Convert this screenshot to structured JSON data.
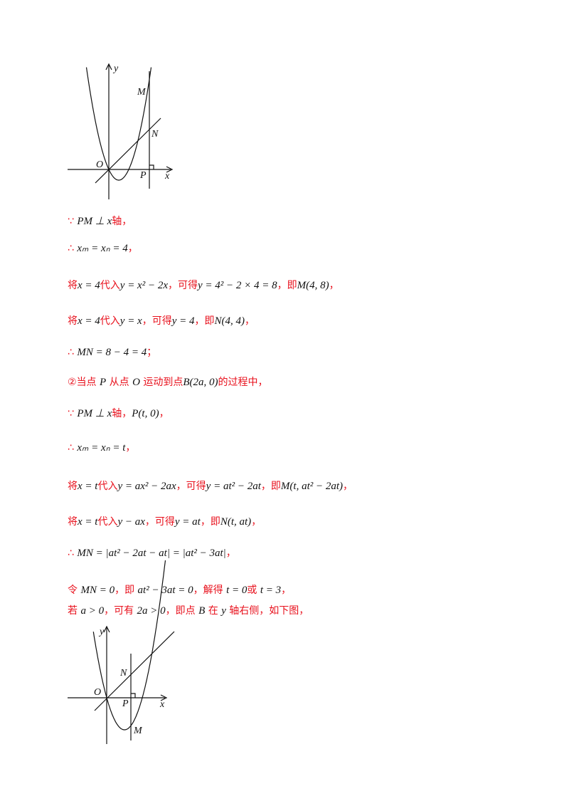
{
  "figure1": {
    "labels": [
      "y",
      "M",
      "N",
      "O",
      "P",
      "x"
    ]
  },
  "lines": [
    [
      "∵ ",
      "PM ⊥ x",
      "轴，"
    ],
    [
      "∴ ",
      "xₘ = xₙ = 4",
      "，"
    ],
    [
      "将",
      "x = 4",
      "代入",
      "y = x² − 2x",
      "，可得",
      "y = 4² − 2 × 4 = 8",
      "，即",
      "M(4, 8)",
      "，"
    ],
    [
      "将",
      "x = 4",
      "代入",
      "y = x",
      "，可得",
      "y = 4",
      "，即",
      "N(4, 4)",
      "，"
    ],
    [
      "∴ ",
      "MN = 8 − 4 = 4",
      "；"
    ],
    [
      "②当点 ",
      "P",
      " 从点 ",
      "O",
      " 运动到点",
      "B(2a, 0)",
      "的过程中，"
    ],
    [
      "∵ ",
      "PM ⊥ x",
      "轴，",
      "P(t, 0)",
      "，"
    ],
    [
      "∴ ",
      "xₘ = xₙ = t",
      "，"
    ],
    [
      "将",
      "x = t",
      "代入",
      "y = ax² − 2ax",
      "，可得",
      "y = at² − 2at",
      "，即",
      "M(t, at² − 2at)",
      "，"
    ],
    [
      "将",
      "x = t",
      "代入",
      "y − ax",
      "，可得",
      "y = at",
      "，即",
      "N(t, at)",
      "，"
    ],
    [
      "∴ ",
      "MN = |at² − 2at − at| = |at² − 3at|",
      "，"
    ],
    [
      "令 ",
      "MN = 0",
      "，即 ",
      "at² − 3at = 0",
      "，解得 ",
      "t = 0",
      "或 ",
      "t = 3",
      "，"
    ],
    [
      "若 ",
      "a > 0",
      "，可有 ",
      "2a > 0",
      "，即点 ",
      "B",
      " 在 ",
      "y",
      " 轴右侧，如下图，"
    ]
  ],
  "figure2": {
    "labels": [
      "y",
      "N",
      "O",
      "P",
      "x",
      "M"
    ]
  }
}
